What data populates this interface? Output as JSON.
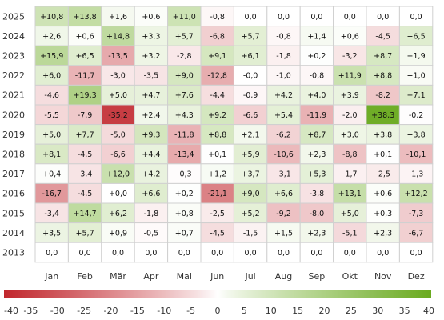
{
  "chart_data": {
    "type": "heatmap",
    "columns": [
      "Jan",
      "Feb",
      "Mär",
      "Apr",
      "Mai",
      "Jun",
      "Jul",
      "Aug",
      "Sep",
      "Okt",
      "Nov",
      "Dez"
    ],
    "rows": [
      {
        "label": "2025",
        "cells": [
          {
            "v": 10.8,
            "t": "+10,8"
          },
          {
            "v": 13.8,
            "t": "+13,8"
          },
          {
            "v": 1.6,
            "t": "+1,6"
          },
          {
            "v": 0.6,
            "t": "+0,6"
          },
          {
            "v": 11.0,
            "t": "+11,0"
          },
          {
            "v": -0.8,
            "t": "-0,8"
          },
          {
            "v": 0.0,
            "t": "0,0"
          },
          {
            "v": 0.0,
            "t": "0,0"
          },
          {
            "v": 0.0,
            "t": "0,0"
          },
          {
            "v": 0.0,
            "t": "0,0"
          },
          {
            "v": 0.0,
            "t": "0,0"
          },
          {
            "v": 0.0,
            "t": "0,0"
          }
        ]
      },
      {
        "label": "2024",
        "cells": [
          {
            "v": 2.6,
            "t": "+2,6"
          },
          {
            "v": 0.6,
            "t": "+0,6"
          },
          {
            "v": 14.8,
            "t": "+14,8"
          },
          {
            "v": 3.3,
            "t": "+3,3"
          },
          {
            "v": 5.7,
            "t": "+5,7"
          },
          {
            "v": -6.8,
            "t": "-6,8"
          },
          {
            "v": 5.7,
            "t": "+5,7"
          },
          {
            "v": -0.8,
            "t": "-0,8"
          },
          {
            "v": 1.4,
            "t": "+1,4"
          },
          {
            "v": 0.6,
            "t": "+0,6"
          },
          {
            "v": -4.5,
            "t": "-4,5"
          },
          {
            "v": 6.5,
            "t": "+6,5"
          }
        ]
      },
      {
        "label": "2023",
        "cells": [
          {
            "v": 15.9,
            "t": "+15,9"
          },
          {
            "v": 6.5,
            "t": "+6,5"
          },
          {
            "v": -13.5,
            "t": "-13,5"
          },
          {
            "v": 3.2,
            "t": "+3,2"
          },
          {
            "v": -2.8,
            "t": "-2,8"
          },
          {
            "v": 9.1,
            "t": "+9,1"
          },
          {
            "v": 6.1,
            "t": "+6,1"
          },
          {
            "v": -1.8,
            "t": "-1,8"
          },
          {
            "v": 0.2,
            "t": "+0,2"
          },
          {
            "v": -3.2,
            "t": "-3,2"
          },
          {
            "v": 8.7,
            "t": "+8,7"
          },
          {
            "v": 1.9,
            "t": "+1,9"
          }
        ]
      },
      {
        "label": "2022",
        "cells": [
          {
            "v": 6.0,
            "t": "+6,0"
          },
          {
            "v": -11.7,
            "t": "-11,7"
          },
          {
            "v": -3.0,
            "t": "-3,0"
          },
          {
            "v": -3.5,
            "t": "-3,5"
          },
          {
            "v": 9.0,
            "t": "+9,0"
          },
          {
            "v": -12.8,
            "t": "-12,8"
          },
          {
            "v": 0.0,
            "t": "-0,0"
          },
          {
            "v": -1.0,
            "t": "-1,0"
          },
          {
            "v": -0.8,
            "t": "-0,8"
          },
          {
            "v": 11.9,
            "t": "+11,9"
          },
          {
            "v": 8.8,
            "t": "+8,8"
          },
          {
            "v": 1.0,
            "t": "+1,0"
          }
        ]
      },
      {
        "label": "2021",
        "cells": [
          {
            "v": -4.6,
            "t": "-4,6"
          },
          {
            "v": 19.3,
            "t": "+19,3"
          },
          {
            "v": 5.0,
            "t": "+5,0"
          },
          {
            "v": 4.7,
            "t": "+4,7"
          },
          {
            "v": 7.6,
            "t": "+7,6"
          },
          {
            "v": -4.4,
            "t": "-4,4"
          },
          {
            "v": -0.9,
            "t": "-0,9"
          },
          {
            "v": 4.2,
            "t": "+4,2"
          },
          {
            "v": 4.0,
            "t": "+4,0"
          },
          {
            "v": 3.9,
            "t": "+3,9"
          },
          {
            "v": -8.2,
            "t": "-8,2"
          },
          {
            "v": 7.1,
            "t": "+7,1"
          }
        ]
      },
      {
        "label": "2020",
        "cells": [
          {
            "v": -5.5,
            "t": "-5,5"
          },
          {
            "v": -7.9,
            "t": "-7,9"
          },
          {
            "v": -35.2,
            "t": "-35,2"
          },
          {
            "v": 2.4,
            "t": "+2,4"
          },
          {
            "v": 4.3,
            "t": "+4,3"
          },
          {
            "v": 9.2,
            "t": "+9,2"
          },
          {
            "v": -6.6,
            "t": "-6,6"
          },
          {
            "v": 5.4,
            "t": "+5,4"
          },
          {
            "v": -11.9,
            "t": "-11,9"
          },
          {
            "v": -2.0,
            "t": "-2,0"
          },
          {
            "v": 38.3,
            "t": "+38,3"
          },
          {
            "v": -0.2,
            "t": "-0,2"
          }
        ]
      },
      {
        "label": "2019",
        "cells": [
          {
            "v": 5.0,
            "t": "+5,0"
          },
          {
            "v": 7.7,
            "t": "+7,7"
          },
          {
            "v": -5.0,
            "t": "-5,0"
          },
          {
            "v": 9.3,
            "t": "+9,3"
          },
          {
            "v": -11.8,
            "t": "-11,8"
          },
          {
            "v": 8.8,
            "t": "+8,8"
          },
          {
            "v": 2.1,
            "t": "+2,1"
          },
          {
            "v": -6.2,
            "t": "-6,2"
          },
          {
            "v": 8.7,
            "t": "+8,7"
          },
          {
            "v": 3.0,
            "t": "+3,0"
          },
          {
            "v": 3.8,
            "t": "+3,8"
          },
          {
            "v": 3.8,
            "t": "+3,8"
          }
        ]
      },
      {
        "label": "2018",
        "cells": [
          {
            "v": 8.1,
            "t": "+8,1"
          },
          {
            "v": -4.5,
            "t": "-4,5"
          },
          {
            "v": -6.6,
            "t": "-6,6"
          },
          {
            "v": 4.4,
            "t": "+4,4"
          },
          {
            "v": -13.4,
            "t": "-13,4"
          },
          {
            "v": 0.1,
            "t": "+0,1"
          },
          {
            "v": 5.9,
            "t": "+5,9"
          },
          {
            "v": -10.6,
            "t": "-10,6"
          },
          {
            "v": 2.3,
            "t": "+2,3"
          },
          {
            "v": -8.8,
            "t": "-8,8"
          },
          {
            "v": 0.1,
            "t": "+0,1"
          },
          {
            "v": -10.1,
            "t": "-10,1"
          }
        ]
      },
      {
        "label": "2017",
        "cells": [
          {
            "v": 0.4,
            "t": "+0,4"
          },
          {
            "v": -3.4,
            "t": "-3,4"
          },
          {
            "v": 12.0,
            "t": "+12,0"
          },
          {
            "v": 4.2,
            "t": "+4,2"
          },
          {
            "v": -0.3,
            "t": "-0,3"
          },
          {
            "v": 1.2,
            "t": "+1,2"
          },
          {
            "v": 3.7,
            "t": "+3,7"
          },
          {
            "v": -3.1,
            "t": "-3,1"
          },
          {
            "v": 5.3,
            "t": "+5,3"
          },
          {
            "v": -1.7,
            "t": "-1,7"
          },
          {
            "v": -2.5,
            "t": "-2,5"
          },
          {
            "v": -1.3,
            "t": "-1,3"
          }
        ]
      },
      {
        "label": "2016",
        "cells": [
          {
            "v": -16.7,
            "t": "-16,7"
          },
          {
            "v": -4.5,
            "t": "-4,5"
          },
          {
            "v": 0.0,
            "t": "+0,0"
          },
          {
            "v": 6.6,
            "t": "+6,6"
          },
          {
            "v": 0.2,
            "t": "+0,2"
          },
          {
            "v": -21.1,
            "t": "-21,1"
          },
          {
            "v": 9.0,
            "t": "+9,0"
          },
          {
            "v": 6.6,
            "t": "+6,6"
          },
          {
            "v": -3.8,
            "t": "-3,8"
          },
          {
            "v": 13.1,
            "t": "+13,1"
          },
          {
            "v": 0.6,
            "t": "+0,6"
          },
          {
            "v": 12.2,
            "t": "+12,2"
          }
        ]
      },
      {
        "label": "2015",
        "cells": [
          {
            "v": -3.4,
            "t": "-3,4"
          },
          {
            "v": 14.7,
            "t": "+14,7"
          },
          {
            "v": 6.2,
            "t": "+6,2"
          },
          {
            "v": -1.8,
            "t": "-1,8"
          },
          {
            "v": 0.8,
            "t": "+0,8"
          },
          {
            "v": -2.5,
            "t": "-2,5"
          },
          {
            "v": 5.2,
            "t": "+5,2"
          },
          {
            "v": -9.2,
            "t": "-9,2"
          },
          {
            "v": -8.0,
            "t": "-8,0"
          },
          {
            "v": 5.0,
            "t": "+5,0"
          },
          {
            "v": 0.3,
            "t": "+0,3"
          },
          {
            "v": -7.3,
            "t": "-7,3"
          }
        ]
      },
      {
        "label": "2014",
        "cells": [
          {
            "v": 3.5,
            "t": "+3,5"
          },
          {
            "v": 5.7,
            "t": "+5,7"
          },
          {
            "v": 0.9,
            "t": "+0,9"
          },
          {
            "v": -0.5,
            "t": "-0,5"
          },
          {
            "v": 0.7,
            "t": "+0,7"
          },
          {
            "v": -4.5,
            "t": "-4,5"
          },
          {
            "v": -1.5,
            "t": "-1,5"
          },
          {
            "v": 1.5,
            "t": "+1,5"
          },
          {
            "v": 2.3,
            "t": "+2,3"
          },
          {
            "v": -5.1,
            "t": "-5,1"
          },
          {
            "v": 2.3,
            "t": "+2,3"
          },
          {
            "v": -6.7,
            "t": "-6,7"
          }
        ]
      },
      {
        "label": "2013",
        "cells": [
          {
            "v": 0.0,
            "t": "0,0"
          },
          {
            "v": 0.0,
            "t": "0,0"
          },
          {
            "v": 0.0,
            "t": "0,0"
          },
          {
            "v": 0.0,
            "t": "0,0"
          },
          {
            "v": 0.0,
            "t": "0,0"
          },
          {
            "v": 0.0,
            "t": "0,0"
          },
          {
            "v": 0.0,
            "t": "0,0"
          },
          {
            "v": 0.0,
            "t": "0,0"
          },
          {
            "v": 0.0,
            "t": "0,0"
          },
          {
            "v": 0.0,
            "t": "0,0"
          },
          {
            "v": 0.0,
            "t": "0,0"
          },
          {
            "v": 0.0,
            "t": "0,0"
          }
        ]
      }
    ],
    "color_scale": {
      "min": -40,
      "max": 40,
      "ticks": [
        "-40",
        "-35",
        "-30",
        "-25",
        "-20",
        "-15",
        "-10",
        "-5",
        "0",
        "5",
        "10",
        "15",
        "20",
        "25",
        "30",
        "35",
        "40"
      ],
      "negative_color": "#c1272d",
      "neutral_color": "#ffffff",
      "positive_color": "#6aaa1f"
    }
  }
}
